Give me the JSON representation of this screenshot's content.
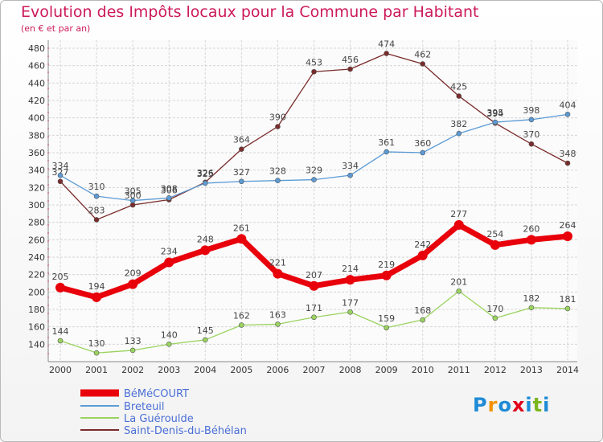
{
  "title": "Evolution des Impôts locaux pour la Commune par Habitant",
  "subtitle": "(en € et par an)",
  "logo": {
    "chars": [
      "P",
      "r",
      "o",
      "x",
      "i",
      "t",
      "i"
    ],
    "colors": [
      "#1e8bd6",
      "#f39200",
      "#1e8bd6",
      "#e2001a",
      "#1e8bd6",
      "#7ab51d",
      "#1e8bd6"
    ]
  },
  "chart_data": {
    "type": "line",
    "title": "Evolution des Impôts locaux pour la Commune par Habitant",
    "subtitle": "(en € et par an)",
    "xlabel": "",
    "ylabel": "",
    "categories": [
      "2000",
      "2001",
      "2002",
      "2003",
      "2004",
      "2005",
      "2006",
      "2007",
      "2008",
      "2009",
      "2010",
      "2011",
      "2012",
      "2013",
      "2014"
    ],
    "ylim": [
      120,
      480
    ],
    "yticks": [
      140,
      160,
      180,
      200,
      220,
      240,
      260,
      280,
      300,
      320,
      340,
      360,
      380,
      400,
      420,
      440,
      460,
      480
    ],
    "grid": true,
    "legend_position": "bottom-left",
    "series": [
      {
        "name": "BéMéCOURT",
        "color": "#e8000b",
        "values": [
          205,
          194,
          209,
          234,
          248,
          261,
          221,
          207,
          214,
          219,
          242,
          277,
          254,
          260,
          264
        ]
      },
      {
        "name": "Breteuil",
        "color": "#5b9bd5",
        "values": [
          334,
          310,
          305,
          308,
          325,
          327,
          328,
          329,
          334,
          361,
          360,
          382,
          395,
          398,
          404
        ]
      },
      {
        "name": "La Guéroulde",
        "color": "#9ad35f",
        "values": [
          144,
          130,
          133,
          140,
          145,
          162,
          163,
          171,
          177,
          159,
          168,
          201,
          170,
          182,
          181
        ]
      },
      {
        "name": "Saint-Denis-du-Béhélan",
        "color": "#7a2b2b",
        "values": [
          327,
          283,
          300,
          306,
          326,
          364,
          390,
          453,
          456,
          474,
          462,
          425,
          394,
          370,
          348
        ]
      }
    ]
  }
}
